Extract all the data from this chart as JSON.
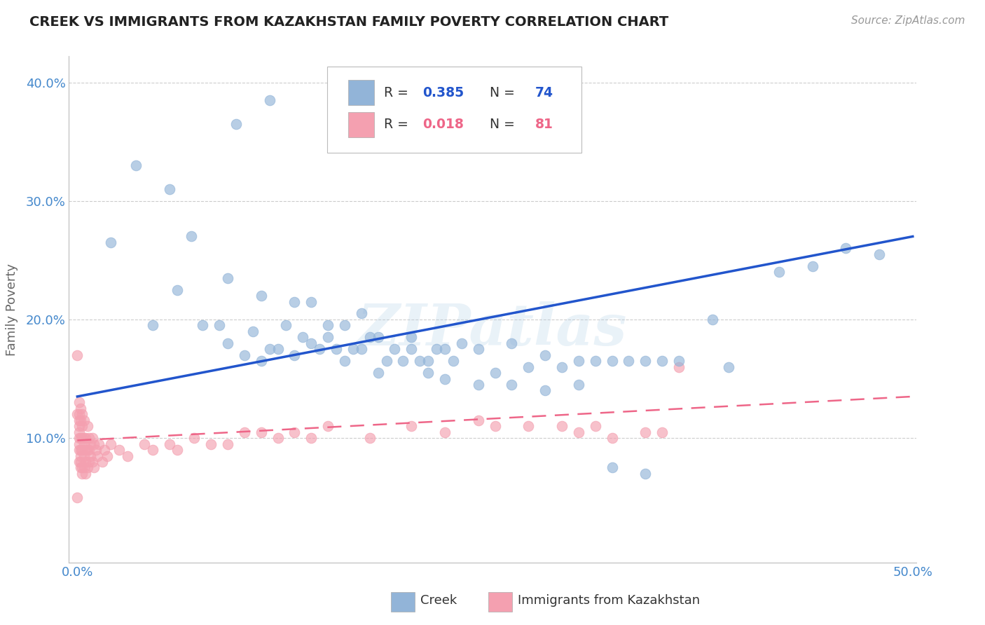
{
  "title": "CREEK VS IMMIGRANTS FROM KAZAKHSTAN FAMILY POVERTY CORRELATION CHART",
  "source": "Source: ZipAtlas.com",
  "ylabel": "Family Poverty",
  "legend_creek": "Creek",
  "legend_kaz": "Immigrants from Kazakhstan",
  "creek_color": "#92B4D8",
  "kaz_color": "#F4A0B0",
  "creek_line_color": "#2255CC",
  "kaz_line_color": "#EE6688",
  "watermark": "ZIPatlas",
  "xlim": [
    -0.005,
    0.502
  ],
  "ylim": [
    -0.005,
    0.422
  ],
  "ytick_vals": [
    0.1,
    0.2,
    0.3,
    0.4
  ],
  "ytick_labels": [
    "10.0%",
    "20.0%",
    "30.0%",
    "40.0%"
  ],
  "creek_x": [
    0.02,
    0.045,
    0.06,
    0.075,
    0.085,
    0.09,
    0.1,
    0.105,
    0.11,
    0.115,
    0.12,
    0.125,
    0.13,
    0.135,
    0.14,
    0.145,
    0.15,
    0.155,
    0.16,
    0.165,
    0.17,
    0.175,
    0.18,
    0.185,
    0.19,
    0.195,
    0.2,
    0.205,
    0.21,
    0.215,
    0.22,
    0.225,
    0.23,
    0.24,
    0.25,
    0.26,
    0.27,
    0.28,
    0.29,
    0.3,
    0.31,
    0.32,
    0.33,
    0.34,
    0.35,
    0.36,
    0.38,
    0.39,
    0.42,
    0.44,
    0.46,
    0.48,
    0.068,
    0.09,
    0.11,
    0.13,
    0.14,
    0.15,
    0.16,
    0.17,
    0.18,
    0.2,
    0.21,
    0.22,
    0.24,
    0.26,
    0.28,
    0.3,
    0.32,
    0.34,
    0.035,
    0.055,
    0.095,
    0.115
  ],
  "creek_y": [
    0.265,
    0.195,
    0.225,
    0.195,
    0.195,
    0.18,
    0.17,
    0.19,
    0.165,
    0.175,
    0.175,
    0.195,
    0.17,
    0.185,
    0.18,
    0.175,
    0.185,
    0.175,
    0.165,
    0.175,
    0.175,
    0.185,
    0.155,
    0.165,
    0.175,
    0.165,
    0.175,
    0.165,
    0.165,
    0.175,
    0.175,
    0.165,
    0.18,
    0.175,
    0.155,
    0.18,
    0.16,
    0.17,
    0.16,
    0.165,
    0.165,
    0.165,
    0.165,
    0.165,
    0.165,
    0.165,
    0.2,
    0.16,
    0.24,
    0.245,
    0.26,
    0.255,
    0.27,
    0.235,
    0.22,
    0.215,
    0.215,
    0.195,
    0.195,
    0.205,
    0.185,
    0.185,
    0.155,
    0.15,
    0.145,
    0.145,
    0.14,
    0.145,
    0.075,
    0.07,
    0.33,
    0.31,
    0.365,
    0.385
  ],
  "kaz_x": [
    0.0,
    0.0,
    0.0,
    0.001,
    0.001,
    0.001,
    0.001,
    0.001,
    0.001,
    0.001,
    0.001,
    0.001,
    0.002,
    0.002,
    0.002,
    0.002,
    0.002,
    0.002,
    0.002,
    0.003,
    0.003,
    0.003,
    0.003,
    0.003,
    0.003,
    0.004,
    0.004,
    0.004,
    0.004,
    0.004,
    0.005,
    0.005,
    0.005,
    0.005,
    0.006,
    0.006,
    0.006,
    0.007,
    0.007,
    0.007,
    0.008,
    0.008,
    0.009,
    0.009,
    0.01,
    0.01,
    0.011,
    0.012,
    0.013,
    0.015,
    0.016,
    0.018,
    0.02,
    0.025,
    0.03,
    0.04,
    0.045,
    0.055,
    0.06,
    0.07,
    0.08,
    0.09,
    0.1,
    0.11,
    0.12,
    0.13,
    0.14,
    0.15,
    0.175,
    0.2,
    0.22,
    0.24,
    0.25,
    0.27,
    0.29,
    0.3,
    0.31,
    0.32,
    0.34,
    0.35,
    0.36
  ],
  "kaz_y": [
    0.05,
    0.12,
    0.17,
    0.08,
    0.09,
    0.095,
    0.1,
    0.105,
    0.11,
    0.115,
    0.12,
    0.13,
    0.075,
    0.08,
    0.085,
    0.09,
    0.1,
    0.115,
    0.125,
    0.07,
    0.075,
    0.09,
    0.1,
    0.11,
    0.12,
    0.075,
    0.085,
    0.095,
    0.1,
    0.115,
    0.07,
    0.08,
    0.09,
    0.1,
    0.075,
    0.09,
    0.11,
    0.08,
    0.09,
    0.1,
    0.085,
    0.095,
    0.08,
    0.1,
    0.075,
    0.095,
    0.09,
    0.085,
    0.095,
    0.08,
    0.09,
    0.085,
    0.095,
    0.09,
    0.085,
    0.095,
    0.09,
    0.095,
    0.09,
    0.1,
    0.095,
    0.095,
    0.105,
    0.105,
    0.1,
    0.105,
    0.1,
    0.11,
    0.1,
    0.11,
    0.105,
    0.115,
    0.11,
    0.11,
    0.11,
    0.105,
    0.11,
    0.1,
    0.105,
    0.105,
    0.16
  ],
  "creek_line_x": [
    0.0,
    0.5
  ],
  "creek_line_y": [
    0.135,
    0.27
  ],
  "kaz_line_x": [
    0.0,
    0.5
  ],
  "kaz_line_y": [
    0.098,
    0.135
  ]
}
